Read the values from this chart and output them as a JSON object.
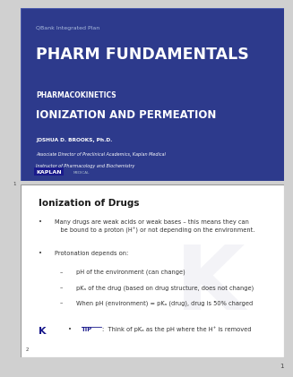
{
  "slide1": {
    "bg_color": "#2d3a8c",
    "border_color": "#4a5aab",
    "qbank_label": "QBank Integrated Plan",
    "title": "PHARM FUNDAMENTALS",
    "subtitle_section": "PHARMACOKINETICS",
    "subtitle_topic": "IONIZATION AND PERMEATION",
    "author_name": "JOSHUA D. BROOKS, Ph.D.",
    "author_title1": "Associate Director of Preclinical Academics, Kaplan Medical",
    "author_title2": "Instructor of Pharmacology and Biochemistry",
    "slide_number": "1",
    "title_color": "#ffffff",
    "subtitle_color": "#ffffff",
    "text_color": "#ffffff",
    "label_color": "#aabbdd"
  },
  "slide2": {
    "bg_color": "#ffffff",
    "border_color": "#999999",
    "heading": "Ionization of Drugs",
    "bullet1": "Many drugs are weak acids or weak bases – this means they can\nbe bound to a proton (H⁺) or not depending on the environment.",
    "bullet2": "Protonation depends on:",
    "sub1": "pH of the environment (can change)",
    "sub2": "pKₐ of the drug (based on drug structure, does not change)",
    "sub3": "When pH (environment) = pKₐ (drug), drug is 50% charged",
    "tip": "TIP:  Think of pKₐ as the pH where the H⁺ is removed",
    "slide_number": "2",
    "heading_color": "#1a1a1a",
    "text_color": "#333333",
    "tip_color": "#333333",
    "tip_bold_color": "#1a1a8c",
    "k_color": "#1a1a8c",
    "watermark_color": "#e8e8f0"
  },
  "page_number": "1",
  "outer_bg": "#d0d0d0"
}
